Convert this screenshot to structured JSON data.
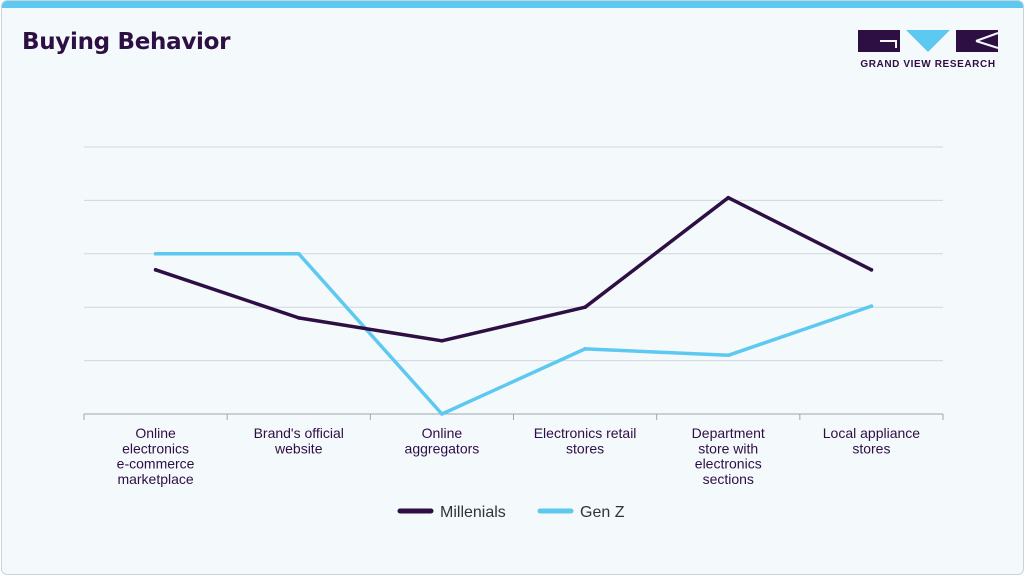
{
  "header": {
    "title": "Buying Behavior",
    "logo_text": "GRAND VIEW RESEARCH"
  },
  "colors": {
    "accent_bar": "#5ec9f0",
    "title": "#2e0f44",
    "millenials": "#2e0f44",
    "genz": "#5ec9f0",
    "grid": "#cfd8df"
  },
  "chart_data": {
    "type": "line",
    "title": "Buying Behavior",
    "xlabel": "",
    "ylabel": "",
    "ylim": [
      0,
      5
    ],
    "grid": true,
    "y_ticks_visible": false,
    "legend_position": "bottom-center",
    "categories": [
      [
        "Online",
        "electronics",
        "e-commerce",
        "marketplace"
      ],
      [
        "Brand's official",
        "website"
      ],
      [
        "Online",
        "aggregators"
      ],
      [
        "Electronics retail",
        "stores"
      ],
      [
        "Department",
        "store with",
        "electronics",
        "sections"
      ],
      [
        "Local appliance",
        "stores"
      ]
    ],
    "series": [
      {
        "name": "Millenials",
        "color": "#2e0f44",
        "values": [
          2.7,
          1.8,
          1.37,
          2.0,
          4.05,
          2.7
        ]
      },
      {
        "name": "Gen Z",
        "color": "#5ec9f0",
        "values": [
          3.0,
          3.0,
          0.0,
          1.22,
          1.1,
          2.02
        ]
      }
    ]
  }
}
